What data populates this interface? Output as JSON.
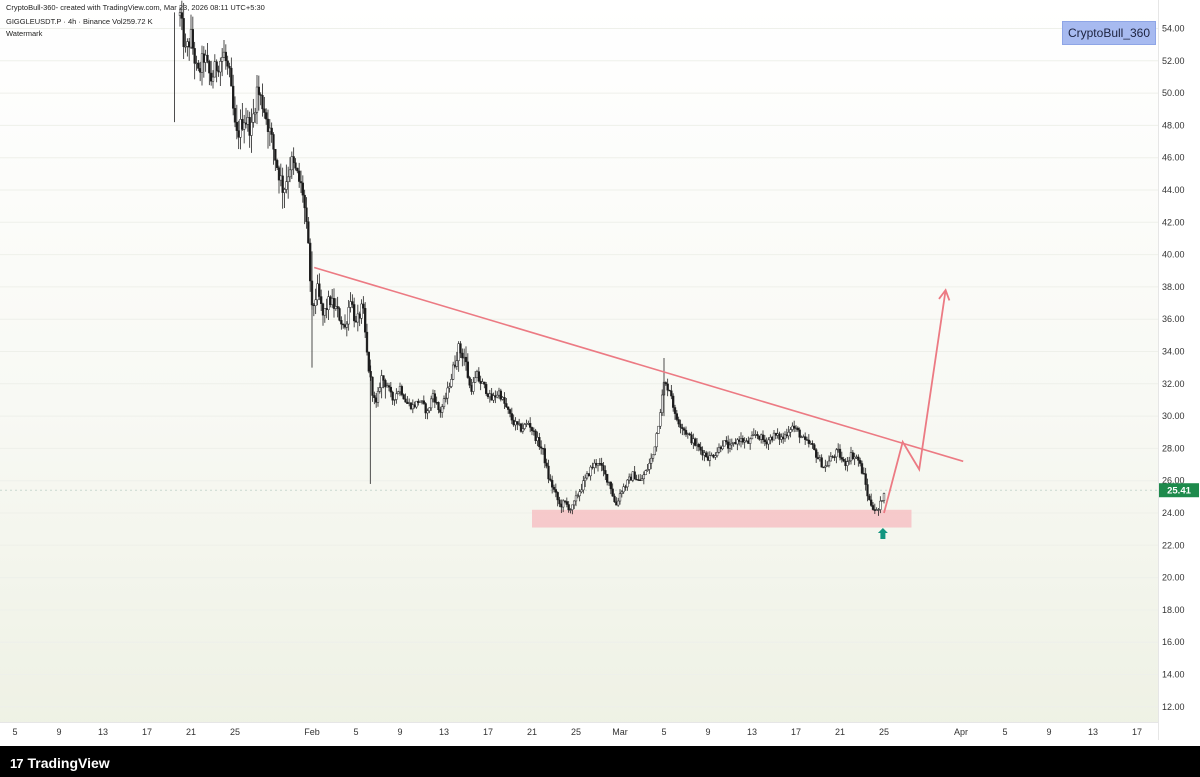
{
  "header": {
    "line1": "CryptoBull-360- created with TradingView.com, Mar 23, 2026 08:11 UTC+5:30",
    "line2": "GIGGLEUSDT.P · 4h · Binance  Vol259.72 K",
    "line3": "Watermark"
  },
  "watermark_badge": "CryptoBull_360",
  "footer": {
    "brand": "TradingView"
  },
  "colors": {
    "candle_up": "#ffffff",
    "candle_down": "#1a1a1a",
    "trendline": "#ec7a83",
    "support_zone": "#f6c4c6",
    "arrow_marker": "#12957f",
    "price_label_bg": "#1e8a4c"
  },
  "chart_data": {
    "type": "candlestick",
    "symbol": "GIGGLEUSDT.P",
    "interval": "4h",
    "exchange": "Binance",
    "volume_label": "Vol259.72 K",
    "current_price": "25.41",
    "y_ticks": [
      "54.00",
      "52.00",
      "50.00",
      "48.00",
      "46.00",
      "44.00",
      "42.00",
      "40.00",
      "38.00",
      "36.00",
      "34.00",
      "32.00",
      "30.00",
      "28.00",
      "26.00",
      "24.00",
      "22.00",
      "20.00",
      "18.00",
      "16.00",
      "14.00",
      "12.00"
    ],
    "y_range": [
      11,
      55.4
    ],
    "x_ticks": [
      "5",
      "9",
      "13",
      "17",
      "21",
      "25",
      "Feb",
      "5",
      "9",
      "13",
      "17",
      "21",
      "25",
      "Mar",
      "5",
      "9",
      "13",
      "17",
      "21",
      "25",
      "Apr",
      "5",
      "9",
      "13",
      "17"
    ],
    "x_tick_days": [
      -27,
      -23,
      -19,
      -15,
      -11,
      -7,
      0,
      4,
      8,
      12,
      16,
      20,
      24,
      28,
      32,
      36,
      40,
      44,
      48,
      52,
      59,
      63,
      67,
      71,
      75
    ],
    "x_axis_origin": "2026-02-01",
    "price_path": [
      {
        "day": -12.0,
        "price": 54.8
      },
      {
        "day": -11.5,
        "price": 52.5
      },
      {
        "day": -11.0,
        "price": 53.5
      },
      {
        "day": -10.4,
        "price": 51.0
      },
      {
        "day": -9.8,
        "price": 52.3
      },
      {
        "day": -9.2,
        "price": 50.8
      },
      {
        "day": -8.6,
        "price": 51.8
      },
      {
        "day": -8.0,
        "price": 52.4
      },
      {
        "day": -7.5,
        "price": 51.0
      },
      {
        "day": -6.9,
        "price": 47.2
      },
      {
        "day": -6.2,
        "price": 48.5
      },
      {
        "day": -5.5,
        "price": 47.8
      },
      {
        "day": -5.0,
        "price": 50.2
      },
      {
        "day": -4.4,
        "price": 49.2
      },
      {
        "day": -3.8,
        "price": 47.5
      },
      {
        "day": -3.2,
        "price": 45.6
      },
      {
        "day": -2.6,
        "price": 44.0
      },
      {
        "day": -1.9,
        "price": 45.8
      },
      {
        "day": -1.3,
        "price": 44.8
      },
      {
        "day": -0.8,
        "price": 43.8
      },
      {
        "day": -0.3,
        "price": 40.0
      },
      {
        "day": 0.0,
        "price": 36.5
      },
      {
        "day": 0.5,
        "price": 37.8
      },
      {
        "day": 1.0,
        "price": 36.2
      },
      {
        "day": 1.6,
        "price": 37.2
      },
      {
        "day": 2.2,
        "price": 36.6
      },
      {
        "day": 3.0,
        "price": 35.4
      },
      {
        "day": 3.5,
        "price": 37.4
      },
      {
        "day": 4.0,
        "price": 35.6
      },
      {
        "day": 4.6,
        "price": 36.8
      },
      {
        "day": 5.0,
        "price": 33.8
      },
      {
        "day": 5.4,
        "price": 31.8
      },
      {
        "day": 5.8,
        "price": 30.6
      },
      {
        "day": 6.3,
        "price": 32.4
      },
      {
        "day": 6.8,
        "price": 32.0
      },
      {
        "day": 7.3,
        "price": 31.0
      },
      {
        "day": 8.0,
        "price": 31.8
      },
      {
        "day": 8.6,
        "price": 30.8
      },
      {
        "day": 9.2,
        "price": 30.6
      },
      {
        "day": 9.8,
        "price": 31.0
      },
      {
        "day": 10.5,
        "price": 30.2
      },
      {
        "day": 11.0,
        "price": 31.4
      },
      {
        "day": 11.6,
        "price": 30.2
      },
      {
        "day": 12.2,
        "price": 31.2
      },
      {
        "day": 12.8,
        "price": 32.8
      },
      {
        "day": 13.3,
        "price": 34.2
      },
      {
        "day": 13.9,
        "price": 33.6
      },
      {
        "day": 14.4,
        "price": 31.6
      },
      {
        "day": 15.0,
        "price": 32.4
      },
      {
        "day": 15.6,
        "price": 31.9
      },
      {
        "day": 16.3,
        "price": 31.0
      },
      {
        "day": 17.0,
        "price": 31.5
      },
      {
        "day": 17.6,
        "price": 30.6
      },
      {
        "day": 18.3,
        "price": 29.6
      },
      {
        "day": 19.0,
        "price": 29.2
      },
      {
        "day": 19.7,
        "price": 29.6
      },
      {
        "day": 20.4,
        "price": 28.6
      },
      {
        "day": 21.0,
        "price": 27.8
      },
      {
        "day": 21.5,
        "price": 26.2
      },
      {
        "day": 22.0,
        "price": 25.4
      },
      {
        "day": 22.5,
        "price": 24.5
      },
      {
        "day": 23.0,
        "price": 24.6
      },
      {
        "day": 23.6,
        "price": 24.2
      },
      {
        "day": 24.2,
        "price": 25.2
      },
      {
        "day": 24.8,
        "price": 26.0
      },
      {
        "day": 25.4,
        "price": 26.8
      },
      {
        "day": 26.0,
        "price": 27.2
      },
      {
        "day": 26.6,
        "price": 26.4
      },
      {
        "day": 27.1,
        "price": 25.8
      },
      {
        "day": 27.6,
        "price": 24.4
      },
      {
        "day": 28.1,
        "price": 25.4
      },
      {
        "day": 28.6,
        "price": 25.8
      },
      {
        "day": 29.2,
        "price": 26.4
      },
      {
        "day": 29.8,
        "price": 25.9
      },
      {
        "day": 30.4,
        "price": 26.6
      },
      {
        "day": 31.0,
        "price": 27.6
      },
      {
        "day": 31.5,
        "price": 29.6
      },
      {
        "day": 32.0,
        "price": 32.0
      },
      {
        "day": 32.6,
        "price": 31.6
      },
      {
        "day": 33.0,
        "price": 30.0
      },
      {
        "day": 33.6,
        "price": 29.4
      },
      {
        "day": 34.2,
        "price": 28.8
      },
      {
        "day": 34.9,
        "price": 28.2
      },
      {
        "day": 35.5,
        "price": 27.8
      },
      {
        "day": 36.1,
        "price": 27.4
      },
      {
        "day": 36.8,
        "price": 27.8
      },
      {
        "day": 37.4,
        "price": 28.4
      },
      {
        "day": 38.0,
        "price": 28.0
      },
      {
        "day": 38.8,
        "price": 28.6
      },
      {
        "day": 39.6,
        "price": 28.3
      },
      {
        "day": 40.4,
        "price": 28.9
      },
      {
        "day": 41.2,
        "price": 28.4
      },
      {
        "day": 42.0,
        "price": 28.8
      },
      {
        "day": 42.8,
        "price": 28.6
      },
      {
        "day": 43.6,
        "price": 29.4
      },
      {
        "day": 44.2,
        "price": 29.0
      },
      {
        "day": 44.8,
        "price": 28.4
      },
      {
        "day": 45.4,
        "price": 28.2
      },
      {
        "day": 46.0,
        "price": 27.4
      },
      {
        "day": 46.6,
        "price": 26.8
      },
      {
        "day": 47.2,
        "price": 27.4
      },
      {
        "day": 47.8,
        "price": 27.8
      },
      {
        "day": 48.4,
        "price": 27.0
      },
      {
        "day": 49.0,
        "price": 27.6
      },
      {
        "day": 49.6,
        "price": 27.4
      },
      {
        "day": 50.2,
        "price": 26.2
      },
      {
        "day": 50.6,
        "price": 24.8
      },
      {
        "day": 51.0,
        "price": 24.4
      },
      {
        "day": 51.4,
        "price": 24.0
      },
      {
        "day": 51.7,
        "price": 24.6
      },
      {
        "day": 52.0,
        "price": 25.4
      }
    ],
    "annotations": {
      "trendline": [
        {
          "day": 0.2,
          "price": 39.2
        },
        {
          "day": 59.2,
          "price": 27.2
        }
      ],
      "support_zone": {
        "day_start": 20.0,
        "day_end": 54.5,
        "price_low": 23.1,
        "price_high": 24.2
      },
      "projection_path": [
        {
          "day": 52.0,
          "price": 24.0
        },
        {
          "day": 53.7,
          "price": 28.4
        },
        {
          "day": 55.2,
          "price": 26.7
        },
        {
          "day": 57.6,
          "price": 37.8
        }
      ],
      "marker_arrow": {
        "day": 51.9,
        "price": 22.7
      }
    }
  }
}
